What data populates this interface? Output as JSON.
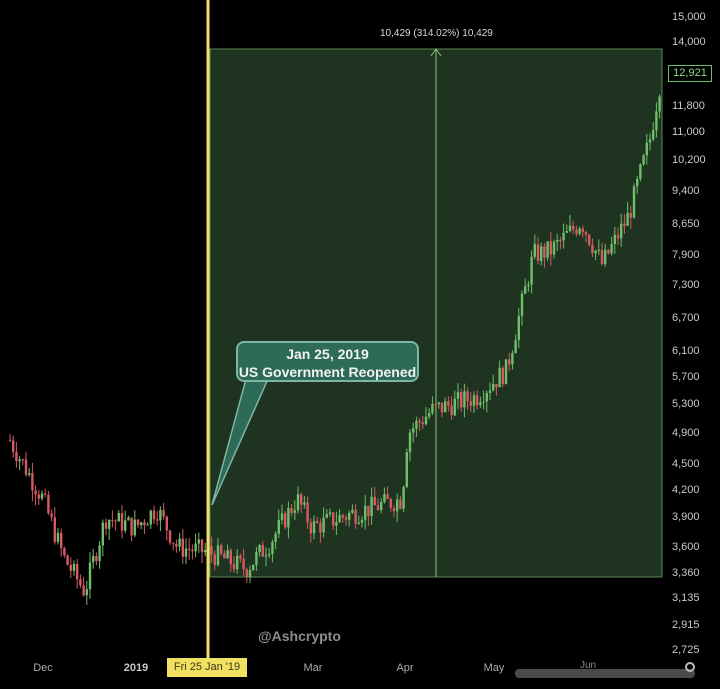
{
  "chart_data": {
    "type": "candlestick",
    "title": "",
    "annotation": {
      "date": "Jan 25, 2019",
      "text": "US Government Reopened"
    },
    "measure": {
      "label": "10,429 (314.02%) 10,429",
      "from_price": 3360,
      "to_price": 13789,
      "change": 10429,
      "change_pct": 314.02
    },
    "current_price": "12,921",
    "crosshair_date": "Fri 25 Jan '19",
    "watermark": "@Ashcrypto",
    "y_ticks": [
      "15,000",
      "14,000",
      "12,921",
      "11,800",
      "11,000",
      "10,200",
      "9,400",
      "8,650",
      "7,900",
      "7,300",
      "6,700",
      "6,100",
      "5,700",
      "5,300",
      "4,900",
      "4,500",
      "4,200",
      "3,900",
      "3,600",
      "3,360",
      "3,135",
      "2,915",
      "2,725"
    ],
    "x_ticks": [
      "Dec",
      "2019",
      "Fri 25 Jan '19",
      "Mar",
      "Apr",
      "May",
      "Jun"
    ],
    "scale": "log",
    "ylim": [
      2725,
      15000
    ],
    "series_approx_close": [
      {
        "date": "2018-11-20",
        "close": 4800
      },
      {
        "date": "2018-12-01",
        "close": 4100
      },
      {
        "date": "2018-12-08",
        "close": 3500
      },
      {
        "date": "2018-12-15",
        "close": 3200
      },
      {
        "date": "2018-12-22",
        "close": 3900
      },
      {
        "date": "2019-01-01",
        "close": 3800
      },
      {
        "date": "2019-01-08",
        "close": 4000
      },
      {
        "date": "2019-01-15",
        "close": 3600
      },
      {
        "date": "2019-01-25",
        "close": 3560
      },
      {
        "date": "2019-02-07",
        "close": 3400
      },
      {
        "date": "2019-02-15",
        "close": 3650
      },
      {
        "date": "2019-02-24",
        "close": 4100
      },
      {
        "date": "2019-03-01",
        "close": 3800
      },
      {
        "date": "2019-03-15",
        "close": 3950
      },
      {
        "date": "2019-03-31",
        "close": 4100
      },
      {
        "date": "2019-04-02",
        "close": 4900
      },
      {
        "date": "2019-04-10",
        "close": 5200
      },
      {
        "date": "2019-04-25",
        "close": 5400
      },
      {
        "date": "2019-05-05",
        "close": 5800
      },
      {
        "date": "2019-05-14",
        "close": 7900
      },
      {
        "date": "2019-05-20",
        "close": 8000
      },
      {
        "date": "2019-05-30",
        "close": 8650
      },
      {
        "date": "2019-06-06",
        "close": 7700
      },
      {
        "date": "2019-06-15",
        "close": 8800
      },
      {
        "date": "2019-06-22",
        "close": 10800
      },
      {
        "date": "2019-06-26",
        "close": 12921
      }
    ],
    "colors": {
      "up": "#6fbf6a",
      "down": "#d65a64",
      "highlight_bg": "#1e3320",
      "crosshair": "#f2e060"
    }
  }
}
